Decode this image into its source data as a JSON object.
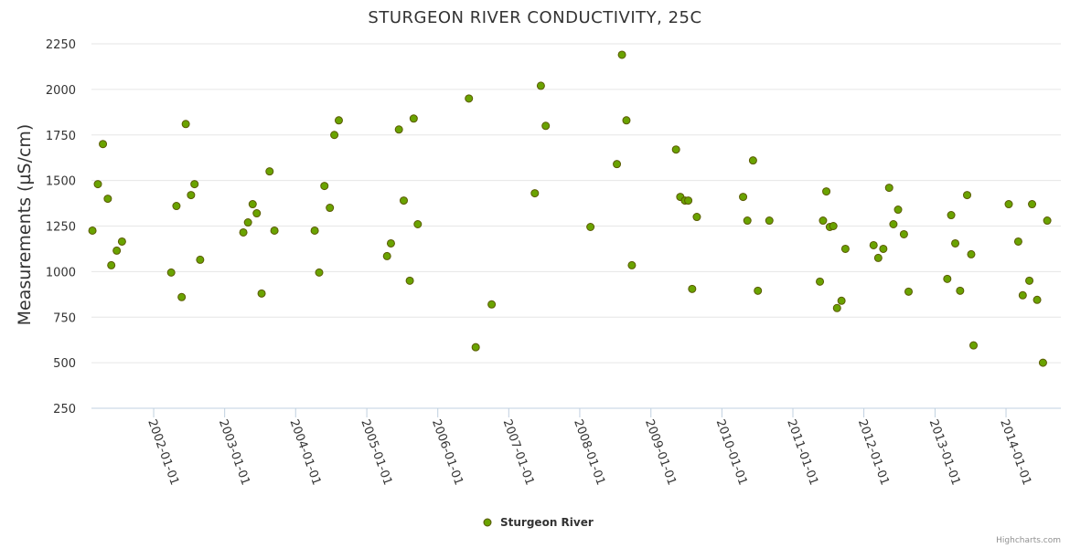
{
  "title": "STURGEON RIVER CONDUCTIVITY, 25C",
  "credits": "Highcharts.com",
  "chart_data": {
    "type": "scatter",
    "title": "STURGEON RIVER CONDUCTIVITY, 25C",
    "ylabel": "Measurements (µS/cm)",
    "xlabel": "",
    "ylim": [
      250,
      2250
    ],
    "yticks": [
      250,
      500,
      750,
      1000,
      1250,
      1500,
      1750,
      2000,
      2250
    ],
    "xlim": [
      "2001-02-15",
      "2014-10-10"
    ],
    "xticks": [
      "2002-01-01",
      "2003-01-01",
      "2004-01-01",
      "2005-01-01",
      "2006-01-01",
      "2007-01-01",
      "2008-01-01",
      "2009-01-01",
      "2010-01-01",
      "2011-01-01",
      "2012-01-01",
      "2013-01-01",
      "2014-01-01"
    ],
    "grid": true,
    "legend_position": "bottom-center",
    "color": "#6aa300",
    "series": [
      {
        "name": "Sturgeon River",
        "points": [
          [
            "2001-02-20",
            1225
          ],
          [
            "2001-03-20",
            1480
          ],
          [
            "2001-04-15",
            1700
          ],
          [
            "2001-05-10",
            1400
          ],
          [
            "2001-05-28",
            1035
          ],
          [
            "2001-06-25",
            1115
          ],
          [
            "2001-07-22",
            1165
          ],
          [
            "2002-04-01",
            995
          ],
          [
            "2002-04-28",
            1360
          ],
          [
            "2002-05-25",
            860
          ],
          [
            "2002-06-15",
            1810
          ],
          [
            "2002-07-12",
            1420
          ],
          [
            "2002-07-30",
            1480
          ],
          [
            "2002-08-28",
            1065
          ],
          [
            "2003-04-07",
            1215
          ],
          [
            "2003-05-01",
            1270
          ],
          [
            "2003-05-25",
            1370
          ],
          [
            "2003-06-15",
            1320
          ],
          [
            "2003-07-10",
            880
          ],
          [
            "2003-08-20",
            1550
          ],
          [
            "2003-09-14",
            1225
          ],
          [
            "2004-04-08",
            1225
          ],
          [
            "2004-05-01",
            995
          ],
          [
            "2004-05-28",
            1470
          ],
          [
            "2004-06-25",
            1350
          ],
          [
            "2004-07-18",
            1750
          ],
          [
            "2004-08-10",
            1830
          ],
          [
            "2005-04-15",
            1085
          ],
          [
            "2005-05-05",
            1155
          ],
          [
            "2005-06-15",
            1780
          ],
          [
            "2005-07-10",
            1390
          ],
          [
            "2005-08-10",
            950
          ],
          [
            "2005-08-30",
            1840
          ],
          [
            "2005-09-20",
            1260
          ],
          [
            "2006-06-10",
            1950
          ],
          [
            "2006-07-15",
            585
          ],
          [
            "2006-10-05",
            820
          ],
          [
            "2007-05-15",
            1430
          ],
          [
            "2007-06-15",
            2020
          ],
          [
            "2007-07-10",
            1800
          ],
          [
            "2008-02-25",
            1245
          ],
          [
            "2008-07-10",
            1590
          ],
          [
            "2008-08-05",
            2190
          ],
          [
            "2008-08-28",
            1830
          ],
          [
            "2008-09-25",
            1035
          ],
          [
            "2009-05-10",
            1670
          ],
          [
            "2009-06-01",
            1410
          ],
          [
            "2009-06-25",
            1390
          ],
          [
            "2009-07-12",
            1390
          ],
          [
            "2009-08-01",
            905
          ],
          [
            "2009-08-25",
            1300
          ],
          [
            "2010-04-20",
            1410
          ],
          [
            "2010-05-12",
            1280
          ],
          [
            "2010-06-10",
            1610
          ],
          [
            "2010-07-05",
            895
          ],
          [
            "2010-09-02",
            1280
          ],
          [
            "2011-05-20",
            945
          ],
          [
            "2011-06-05",
            1280
          ],
          [
            "2011-06-22",
            1440
          ],
          [
            "2011-07-10",
            1245
          ],
          [
            "2011-07-28",
            1250
          ],
          [
            "2011-08-16",
            800
          ],
          [
            "2011-09-08",
            840
          ],
          [
            "2011-09-28",
            1125
          ],
          [
            "2012-02-20",
            1145
          ],
          [
            "2012-03-15",
            1075
          ],
          [
            "2012-04-10",
            1125
          ],
          [
            "2012-05-10",
            1460
          ],
          [
            "2012-06-01",
            1260
          ],
          [
            "2012-06-25",
            1340
          ],
          [
            "2012-07-25",
            1205
          ],
          [
            "2012-08-18",
            890
          ],
          [
            "2013-03-05",
            960
          ],
          [
            "2013-03-25",
            1310
          ],
          [
            "2013-04-15",
            1155
          ],
          [
            "2013-05-10",
            895
          ],
          [
            "2013-06-15",
            1420
          ],
          [
            "2013-07-06",
            1095
          ],
          [
            "2013-07-18",
            595
          ],
          [
            "2014-01-15",
            1370
          ],
          [
            "2014-03-05",
            1165
          ],
          [
            "2014-03-28",
            870
          ],
          [
            "2014-05-01",
            950
          ],
          [
            "2014-05-15",
            1370
          ],
          [
            "2014-06-10",
            845
          ],
          [
            "2014-07-10",
            500
          ],
          [
            "2014-08-01",
            1280
          ]
        ]
      }
    ]
  }
}
